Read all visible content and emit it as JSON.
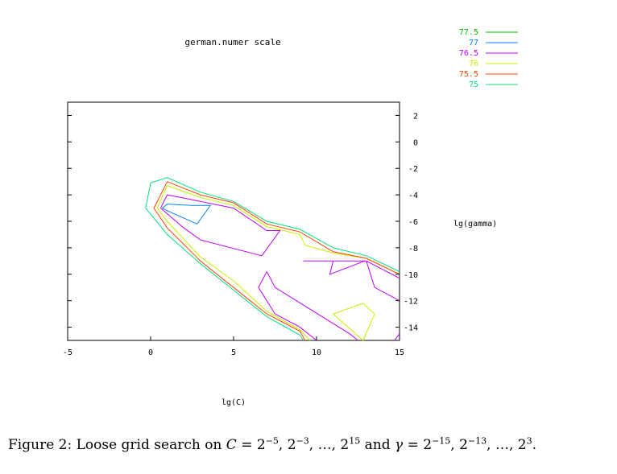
{
  "chart_data": {
    "type": "contour",
    "title": "german.numer scale",
    "xlabel": "lg(C)",
    "ylabel": "lg(gamma)",
    "xlim": [
      -5,
      15
    ],
    "ylim": [
      -15,
      3
    ],
    "xticks": [
      -5,
      0,
      5,
      10,
      15
    ],
    "yticks": [
      2,
      0,
      -2,
      -4,
      -6,
      -8,
      -10,
      -12,
      -14
    ],
    "xtick_labels": [
      "-5",
      "0",
      "5",
      "10",
      "15"
    ],
    "ytick_labels": [
      "2",
      "0",
      "-2",
      "-4",
      "-6",
      "-8",
      "-10",
      "-12",
      "-14"
    ],
    "legend_position": "top-right",
    "series": [
      {
        "name": "77.5",
        "color": "#00c000",
        "paths": []
      },
      {
        "name": "77",
        "color": "#0080ff",
        "paths": [
          [
            [
              0.7,
              -5.0
            ],
            [
              1.0,
              -4.7
            ],
            [
              2.5,
              -4.8
            ],
            [
              3.6,
              -4.8
            ],
            [
              2.8,
              -6.2
            ],
            [
              1.0,
              -5.2
            ],
            [
              0.7,
              -5.0
            ]
          ]
        ]
      },
      {
        "name": "76.5",
        "color": "#c000ff",
        "paths": [
          [
            [
              0.6,
              -5.0
            ],
            [
              1.0,
              -4.0
            ],
            [
              3.0,
              -4.5
            ],
            [
              5.0,
              -5.0
            ],
            [
              7.0,
              -6.7
            ],
            [
              7.8,
              -6.7
            ],
            [
              6.7,
              -8.6
            ],
            [
              3.0,
              -7.4
            ],
            [
              2.0,
              -6.5
            ],
            [
              0.6,
              -5.0
            ]
          ],
          [
            [
              9.2,
              -9.0
            ],
            [
              13.0,
              -9.0
            ],
            [
              15.0,
              -10.3
            ]
          ],
          [
            [
              11.0,
              -9.0
            ],
            [
              10.8,
              -10.0
            ],
            [
              12.9,
              -9.0
            ]
          ],
          [
            [
              13.0,
              -9.0
            ],
            [
              13.5,
              -11.0
            ],
            [
              15.0,
              -12.0
            ]
          ],
          [
            [
              7.0,
              -9.8
            ],
            [
              6.5,
              -11.0
            ],
            [
              7.5,
              -13.0
            ],
            [
              9.0,
              -14.0
            ],
            [
              10.0,
              -15.0
            ]
          ],
          [
            [
              7.0,
              -9.8
            ],
            [
              7.5,
              -11.0
            ],
            [
              12.0,
              -14.5
            ],
            [
              12.5,
              -15.0
            ]
          ],
          [
            [
              14.7,
              -15.0
            ],
            [
              15.0,
              -14.5
            ]
          ]
        ]
      },
      {
        "name": "76",
        "color": "#c8f000",
        "paths": [
          [
            [
              0.4,
              -5.0
            ],
            [
              1.0,
              -3.3
            ],
            [
              3.0,
              -4.2
            ],
            [
              5.0,
              -4.8
            ],
            [
              7.0,
              -6.4
            ],
            [
              9.0,
              -7.0
            ],
            [
              9.3,
              -7.8
            ],
            [
              11.0,
              -8.4
            ],
            [
              13.0,
              -8.8
            ],
            [
              15.0,
              -10.0
            ]
          ],
          [
            [
              0.4,
              -5.0
            ],
            [
              1.0,
              -6.0
            ],
            [
              3.0,
              -8.7
            ],
            [
              5.0,
              -10.5
            ],
            [
              7.0,
              -12.8
            ],
            [
              9.0,
              -14.2
            ],
            [
              9.6,
              -15.0
            ]
          ],
          [
            [
              11.0,
              -13.0
            ],
            [
              12.8,
              -12.2
            ],
            [
              13.5,
              -13.0
            ],
            [
              12.8,
              -15.0
            ],
            [
              11.0,
              -13.0
            ]
          ]
        ]
      },
      {
        "name": "75.5",
        "color": "#ff4000",
        "paths": [
          [
            [
              0.2,
              -5.0
            ],
            [
              1.0,
              -3.0
            ],
            [
              3.0,
              -4.0
            ],
            [
              5.0,
              -4.6
            ],
            [
              7.0,
              -6.2
            ],
            [
              9.0,
              -6.8
            ],
            [
              11.0,
              -8.3
            ],
            [
              13.0,
              -8.8
            ],
            [
              15.0,
              -10.0
            ]
          ],
          [
            [
              0.2,
              -5.0
            ],
            [
              1.0,
              -6.5
            ],
            [
              3.0,
              -9.0
            ],
            [
              5.0,
              -11.0
            ],
            [
              7.0,
              -13.0
            ],
            [
              9.0,
              -14.3
            ],
            [
              9.3,
              -15.0
            ]
          ]
        ]
      },
      {
        "name": "75",
        "color": "#00e080",
        "paths": [
          [
            [
              -0.3,
              -5.0
            ],
            [
              0,
              -3.1
            ],
            [
              1.0,
              -2.7
            ],
            [
              3.0,
              -3.8
            ],
            [
              5.0,
              -4.5
            ],
            [
              7.0,
              -6.0
            ],
            [
              9.0,
              -6.6
            ],
            [
              11.0,
              -8.0
            ],
            [
              13.0,
              -8.6
            ],
            [
              15.0,
              -9.8
            ]
          ],
          [
            [
              -0.3,
              -5.0
            ],
            [
              1.0,
              -7.0
            ],
            [
              3.0,
              -9.2
            ],
            [
              5.0,
              -11.2
            ],
            [
              7.0,
              -13.2
            ],
            [
              9.0,
              -14.6
            ],
            [
              9.2,
              -15.0
            ]
          ]
        ]
      }
    ]
  },
  "caption": {
    "prefix": "Figure 2: Loose grid search on",
    "c_var": "C",
    "c_base": "2",
    "c_exp1": "−5",
    "c_exp2": "−3",
    "c_exp3": "15",
    "and": "and",
    "gamma_var": "γ",
    "g_exp1": "−15",
    "g_exp2": "−13",
    "g_exp3": "3",
    "equals": "=",
    "sep": ",",
    "ellipsis": "…",
    "end": "."
  }
}
